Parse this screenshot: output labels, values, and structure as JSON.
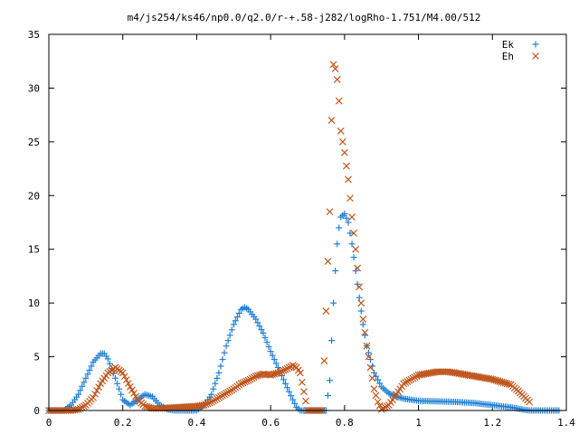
{
  "chart_data": {
    "type": "scatter",
    "title": "m4/js254/ks46/np0.0/q2.0/r-+.58-j282/logRho-1.751/M4.00/512",
    "xlabel": "",
    "ylabel": "",
    "xlim": [
      0,
      1.4
    ],
    "ylim": [
      0,
      35
    ],
    "x_ticks": [
      0,
      0.2,
      0.4,
      0.6,
      0.8,
      1,
      1.2,
      1.4
    ],
    "x_tick_labels": [
      "0",
      "0.2",
      "0.4",
      "0.6",
      "0.8",
      "1",
      "1.2",
      "1.4"
    ],
    "y_ticks": [
      0,
      5,
      10,
      15,
      20,
      25,
      30,
      35
    ],
    "y_tick_labels": [
      "0",
      "5",
      "10",
      "15",
      "20",
      "25",
      "30",
      "35"
    ],
    "grid": false,
    "legend_position": "top-right",
    "series": [
      {
        "name": "Ek",
        "marker": "plus",
        "color": "#1f7fd6",
        "x": [
          0.0,
          0.04,
          0.06,
          0.08,
          0.1,
          0.12,
          0.14,
          0.15,
          0.16,
          0.18,
          0.2,
          0.22,
          0.24,
          0.26,
          0.28,
          0.3,
          0.32,
          0.34,
          0.36,
          0.4,
          0.42,
          0.44,
          0.46,
          0.48,
          0.5,
          0.52,
          0.53,
          0.54,
          0.56,
          0.58,
          0.6,
          0.62,
          0.64,
          0.66,
          0.67,
          0.68,
          0.7,
          0.72,
          0.74,
          0.75,
          0.76,
          0.765,
          0.77,
          0.775,
          0.78,
          0.785,
          0.79,
          0.8,
          0.81,
          0.82,
          0.83,
          0.84,
          0.85,
          0.86,
          0.88,
          0.9,
          0.92,
          0.94,
          0.96,
          1.0,
          1.05,
          1.1,
          1.15,
          1.2,
          1.25,
          1.28,
          1.3,
          1.32,
          1.35,
          1.38
        ],
        "y": [
          0.0,
          0.0,
          0.5,
          1.5,
          3.0,
          4.5,
          5.3,
          5.3,
          4.8,
          3.0,
          1.0,
          0.5,
          1.0,
          1.5,
          1.3,
          0.5,
          0.1,
          0.0,
          0.0,
          0.0,
          0.5,
          1.5,
          3.5,
          6.0,
          8.0,
          9.4,
          9.6,
          9.4,
          8.5,
          7.2,
          5.5,
          4.0,
          2.5,
          1.0,
          0.3,
          0.0,
          0.0,
          0.0,
          0.0,
          0.0,
          2.8,
          6.5,
          10.0,
          13.0,
          15.5,
          17.0,
          18.0,
          18.3,
          17.5,
          15.5,
          13.0,
          10.5,
          8.0,
          6.0,
          3.5,
          2.2,
          1.6,
          1.3,
          1.1,
          0.9,
          0.85,
          0.8,
          0.7,
          0.5,
          0.3,
          0.1,
          0.0,
          0.0,
          0.0,
          0.0
        ]
      },
      {
        "name": "Eh",
        "marker": "cross",
        "color": "#c0561d",
        "x": [
          0.0,
          0.06,
          0.08,
          0.1,
          0.12,
          0.14,
          0.16,
          0.18,
          0.2,
          0.22,
          0.24,
          0.26,
          0.28,
          0.3,
          0.35,
          0.4,
          0.42,
          0.44,
          0.46,
          0.48,
          0.5,
          0.52,
          0.54,
          0.56,
          0.58,
          0.6,
          0.62,
          0.64,
          0.66,
          0.67,
          0.68,
          0.7,
          0.74,
          0.76,
          0.765,
          0.77,
          0.775,
          0.78,
          0.785,
          0.79,
          0.8,
          0.81,
          0.82,
          0.83,
          0.84,
          0.85,
          0.86,
          0.87,
          0.88,
          0.89,
          0.9,
          0.92,
          0.94,
          0.96,
          1.0,
          1.05,
          1.08,
          1.1,
          1.15,
          1.2,
          1.25,
          1.28,
          1.3
        ],
        "y": [
          0.0,
          0.0,
          0.1,
          0.5,
          1.2,
          2.5,
          3.5,
          4.0,
          3.5,
          2.2,
          1.0,
          0.4,
          0.2,
          0.2,
          0.3,
          0.4,
          0.5,
          0.8,
          1.2,
          1.6,
          2.0,
          2.5,
          2.8,
          3.2,
          3.4,
          3.3,
          3.5,
          3.8,
          4.2,
          4.0,
          3.5,
          0.0,
          0.0,
          18.5,
          27.0,
          32.2,
          31.8,
          30.8,
          28.8,
          26.0,
          24.0,
          21.5,
          18.0,
          15.0,
          11.5,
          8.5,
          6.0,
          4.0,
          2.0,
          0.8,
          0.1,
          0.5,
          1.5,
          2.5,
          3.3,
          3.6,
          3.6,
          3.5,
          3.2,
          2.9,
          2.4,
          1.5,
          0.8
        ]
      }
    ]
  }
}
